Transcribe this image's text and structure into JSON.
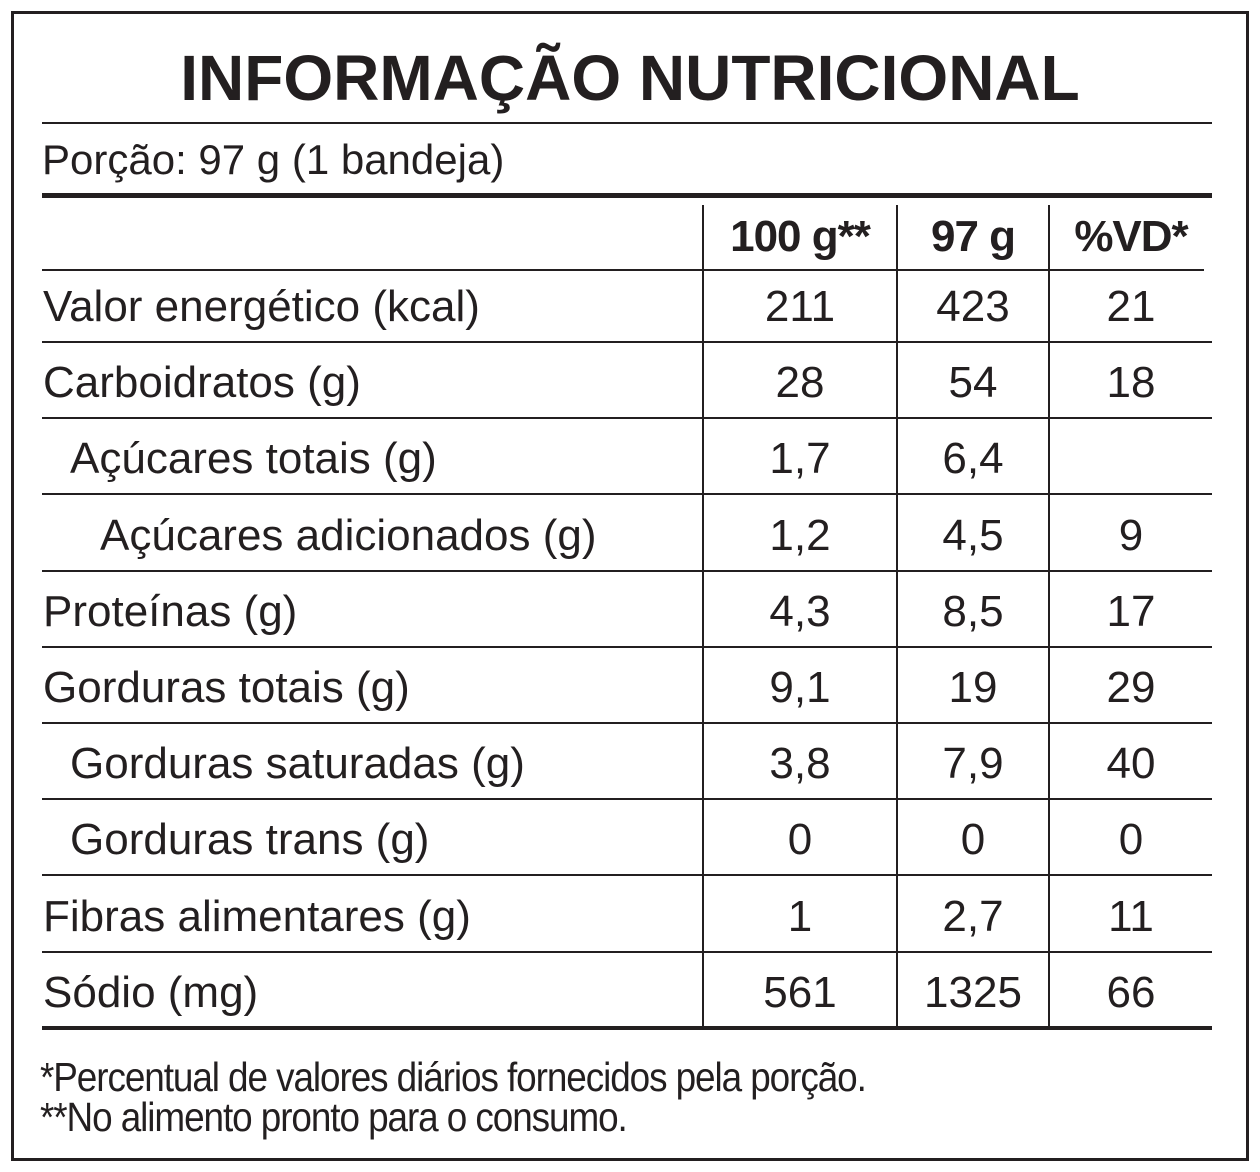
{
  "title": "INFORMAÇÃO NUTRICIONAL",
  "portion": "Porção: 97 g (1 bandeja)",
  "table": {
    "headers": [
      "100 g**",
      "97 g",
      "%VD*"
    ],
    "rows": [
      {
        "label": "Valor energético (kcal)",
        "values": [
          211,
          423,
          21
        ]
      },
      {
        "label": "Carboidratos (g)",
        "values": [
          28,
          54,
          18
        ]
      },
      {
        "label": "Açúcares totais (g)",
        "values": [
          "1,7",
          "6,4",
          null
        ]
      },
      {
        "label": "Açúcares adicionados (g)",
        "values": [
          "1,2",
          "4,5",
          9
        ]
      },
      {
        "label": "Proteínas (g)",
        "values": [
          "4,3",
          "8,5",
          17
        ]
      },
      {
        "label": "Gorduras totais (g)",
        "values": [
          "9,1",
          19,
          29
        ]
      },
      {
        "label": "Gorduras saturadas (g)",
        "values": [
          "3,8",
          "7,9",
          40
        ]
      },
      {
        "label": "Gorduras trans (g)",
        "values": [
          0,
          0,
          0
        ]
      },
      {
        "label": "Fibras alimentares (g)",
        "values": [
          1,
          "2,7",
          11
        ]
      },
      {
        "label": "Sódio (mg)",
        "values": [
          561,
          1325,
          66
        ]
      }
    ]
  },
  "footnotes": [
    "*Percentual de valores diários fornecidos pela porção.",
    "**No alimento pronto para o consumo."
  ]
}
